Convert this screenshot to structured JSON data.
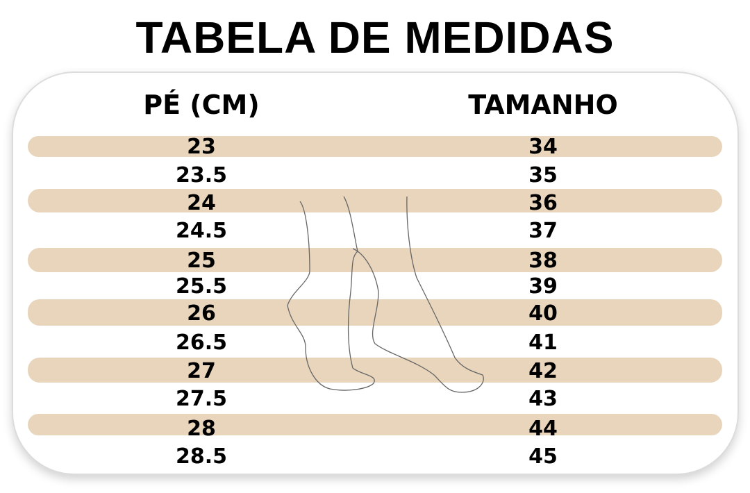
{
  "title": "TABELA DE MEDIDAS",
  "headers": {
    "foot_cm": "PÉ (CM)",
    "size": "TAMANHO"
  },
  "rows": [
    {
      "cm": "23",
      "size": "34"
    },
    {
      "cm": "23.5",
      "size": "35"
    },
    {
      "cm": "24",
      "size": "36"
    },
    {
      "cm": "24.5",
      "size": "37"
    },
    {
      "cm": "25",
      "size": "38"
    },
    {
      "cm": "25.5",
      "size": "39"
    },
    {
      "cm": "26",
      "size": "40"
    },
    {
      "cm": "26.5",
      "size": "41"
    },
    {
      "cm": "27",
      "size": "42"
    },
    {
      "cm": "27.5",
      "size": "43"
    },
    {
      "cm": "28",
      "size": "44"
    },
    {
      "cm": "28.5",
      "size": "45"
    }
  ],
  "colors": {
    "stripe": "#e8d5bc",
    "text": "#000000"
  },
  "illustration": "feet-outline-icon"
}
